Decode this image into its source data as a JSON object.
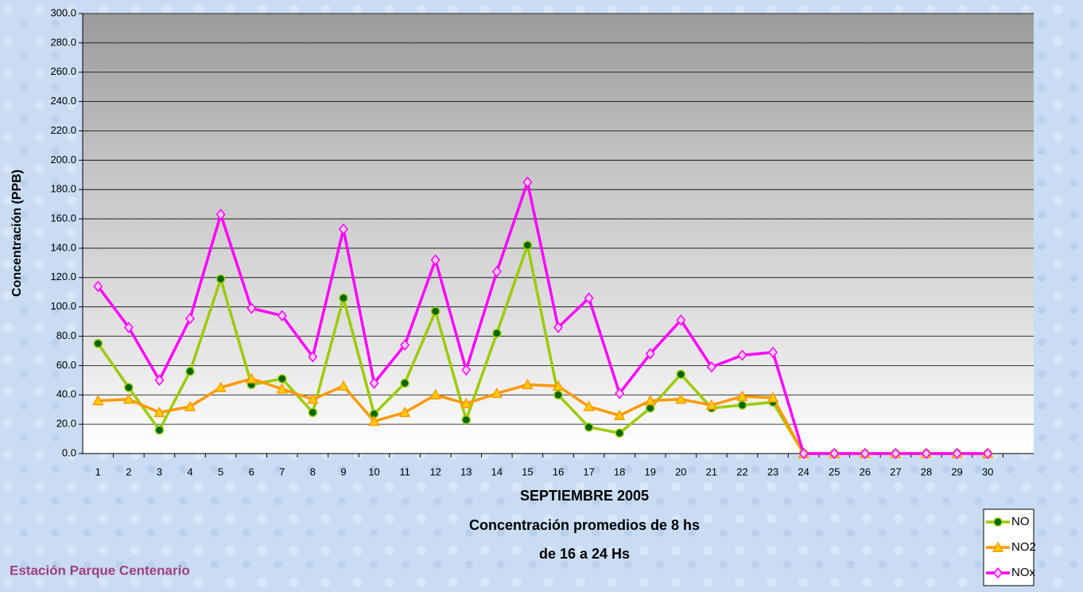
{
  "chart_data": {
    "type": "line",
    "ylabel": "Concentración  (PPB)",
    "xlabel": [
      "SEPTIEMBRE 2005",
      "Concentración promedios de 8 hs",
      "de 16 a 24 Hs"
    ],
    "annotation": "Estación Parque Centenario",
    "categories": [
      "1",
      "2",
      "3",
      "4",
      "5",
      "6",
      "7",
      "8",
      "9",
      "10",
      "11",
      "12",
      "13",
      "14",
      "15",
      "16",
      "17",
      "18",
      "19",
      "20",
      "21",
      "22",
      "23",
      "24",
      "25",
      "26",
      "27",
      "28",
      "29",
      "30"
    ],
    "series": [
      {
        "name": "NO",
        "color": "#99cc00",
        "marker": "circle",
        "marker_color": "#006600",
        "values": [
          75,
          45,
          16,
          56,
          119,
          47,
          51,
          28,
          106,
          27,
          48,
          97,
          23,
          82,
          142,
          40,
          18,
          14,
          31,
          54,
          31,
          33,
          35,
          0,
          0,
          0,
          0,
          0,
          0,
          0
        ]
      },
      {
        "name": "NO2",
        "color": "#ff9900",
        "marker": "triangle",
        "marker_color": "#ffcc00",
        "values": [
          36,
          37,
          28,
          32,
          45,
          51,
          44,
          37,
          46,
          22,
          28,
          40,
          34,
          41,
          47,
          46,
          32,
          26,
          36,
          37,
          33,
          39,
          38,
          0,
          0,
          0,
          0,
          0,
          0,
          0
        ]
      },
      {
        "name": "NOx",
        "color": "#ff00ff",
        "marker": "diamond",
        "marker_color": "#ffccff",
        "values": [
          114,
          86,
          50,
          92,
          163,
          99,
          94,
          66,
          153,
          48,
          74,
          132,
          57,
          124,
          185,
          86,
          106,
          41,
          68,
          91,
          59,
          67,
          69,
          0,
          0,
          0,
          0,
          0,
          0,
          0
        ]
      }
    ],
    "ylim": [
      0,
      300
    ],
    "yticks": [
      {
        "value": 0,
        "label": "0.0"
      },
      {
        "value": 20,
        "label": "20.0"
      },
      {
        "value": 40,
        "label": "40.0"
      },
      {
        "value": 60,
        "label": "60.0"
      },
      {
        "value": 80,
        "label": "80.0"
      },
      {
        "value": 100,
        "label": "100.0"
      },
      {
        "value": 120,
        "label": "120.0"
      },
      {
        "value": 140,
        "label": "140.0"
      },
      {
        "value": 160,
        "label": "160.0"
      },
      {
        "value": 180,
        "label": "180.0"
      },
      {
        "value": 200,
        "label": "200.0"
      },
      {
        "value": 220,
        "label": "220.0"
      },
      {
        "value": 240,
        "label": "240.0"
      },
      {
        "value": 260,
        "label": "260.0"
      },
      {
        "value": 280,
        "label": "280.0"
      },
      {
        "value": 300,
        "label": "300.0"
      }
    ],
    "grid": true,
    "legend": "lower right"
  }
}
